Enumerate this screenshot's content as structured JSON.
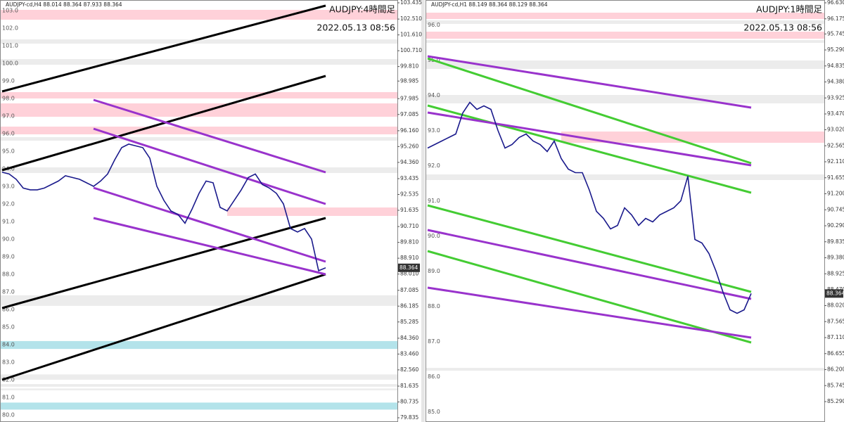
{
  "chart_data": [
    {
      "type": "line",
      "header": "AUDJPY-cd,H4  88.014 88.364 87.933 88.364",
      "title": "AUDJPY:4時間足",
      "subtitle": "2022.05.13 08:56",
      "color": "#1a1a8c",
      "values": [
        93.8,
        93.7,
        93.4,
        92.9,
        92.8,
        92.8,
        92.9,
        93.1,
        93.3,
        93.6,
        93.5,
        93.4,
        93.2,
        93.0,
        93.3,
        93.7,
        94.5,
        95.2,
        95.4,
        95.3,
        95.2,
        94.6,
        93.0,
        92.2,
        91.6,
        91.4,
        90.9,
        91.7,
        92.6,
        93.3,
        93.2,
        91.8,
        91.6,
        92.2,
        92.8,
        93.5,
        93.7,
        93.1,
        92.9,
        92.6,
        92.0,
        90.6,
        90.4,
        90.6,
        90.0,
        88.2,
        88.364
      ],
      "last_price": 88.364,
      "ylim": [
        79.595,
        103.595
      ],
      "yticks": [
        103.435,
        {
          "value": 102.51,
          "label": "102.510"
        },
        {
          "value": 101.61,
          "label": "101.610"
        },
        {
          "value": 100.71,
          "label": "100.710"
        },
        {
          "value": 99.81,
          "label": "99.810"
        },
        98.985,
        97.985,
        97.085,
        {
          "value": 96.16,
          "label": "96.160"
        },
        {
          "value": 95.26,
          "label": "95.260"
        },
        {
          "value": 94.36,
          "label": "94.360"
        },
        93.435,
        92.535,
        91.635,
        {
          "value": 90.71,
          "label": "90.710"
        },
        {
          "value": 89.81,
          "label": "89.810"
        },
        {
          "value": 88.91,
          "label": "88.910"
        },
        {
          "value": 88.01,
          "label": "88.010"
        },
        87.085,
        86.185,
        85.285,
        {
          "value": 84.36,
          "label": "84.360"
        },
        {
          "value": 83.46,
          "label": "83.460"
        },
        {
          "value": 82.56,
          "label": "82.560"
        },
        81.635,
        80.735,
        79.835
      ],
      "levels": [
        {
          "value": 103,
          "label": "103.0"
        },
        {
          "value": 102,
          "label": "102.0"
        },
        {
          "value": 101,
          "label": "101.0"
        },
        {
          "value": 100,
          "label": "100.0"
        },
        {
          "value": 99,
          "label": "99.0"
        },
        {
          "value": 98,
          "label": "98.0"
        },
        {
          "value": 97,
          "label": "97.0"
        },
        {
          "value": 96,
          "label": "96.0"
        },
        {
          "value": 95,
          "label": "95.0"
        },
        {
          "value": 94,
          "label": "94.0"
        },
        {
          "value": 93,
          "label": "93.0"
        },
        {
          "value": 92,
          "label": "92.0"
        },
        {
          "value": 91,
          "label": "91.0"
        },
        {
          "value": 90,
          "label": "90.0"
        },
        {
          "value": 89,
          "label": "89.0"
        },
        {
          "value": 88,
          "label": "88.0"
        },
        {
          "value": 87,
          "label": "87.0"
        },
        {
          "value": 86,
          "label": "86.0"
        },
        {
          "value": 85,
          "label": "85.0"
        },
        {
          "value": 84,
          "label": "84.0"
        },
        {
          "value": 83,
          "label": "83.0"
        },
        {
          "value": 82,
          "label": "82.0"
        },
        {
          "value": 81,
          "label": "81.0"
        },
        {
          "value": 80,
          "label": "80.0"
        }
      ],
      "zones": [
        {
          "from": 102.475,
          "to": 103.035,
          "color": "#ffd1d9"
        },
        {
          "from": 101.115,
          "to": 101.355,
          "color": "#ececec"
        },
        {
          "from": 99.915,
          "to": 100.235,
          "color": "#ececec"
        },
        {
          "from": 97.995,
          "to": 98.355,
          "color": "#ffd1d9"
        },
        {
          "from": 96.955,
          "to": 97.715,
          "color": "#ffd1d9"
        },
        {
          "from": 95.955,
          "to": 96.395,
          "color": "#ffd1d9"
        },
        {
          "from": 95.595,
          "to": 95.795,
          "color": "#ececec"
        },
        {
          "from": 93.755,
          "to": 94.075,
          "color": "#ececec"
        },
        {
          "from": 91.315,
          "to": 91.795,
          "color": "#ffd1d9",
          "start": 32
        },
        {
          "from": 86.2,
          "to": 86.8,
          "color": "#ececec"
        },
        {
          "from": 83.75,
          "to": 84.2,
          "color": "#b3e3ea"
        },
        {
          "from": 82.0,
          "to": 82.3,
          "color": "#ececec"
        },
        {
          "from": 81.6,
          "to": 81.75,
          "color": "#ececec"
        },
        {
          "from": 81.4,
          "to": 81.5,
          "color": "#ececec"
        },
        {
          "from": 80.3,
          "to": 80.7,
          "color": "#b3e3ea"
        }
      ],
      "trendlines": [
        {
          "x": [
            0,
            46
          ],
          "y": [
            98.395,
            103.275
          ],
          "color": "#000000"
        },
        {
          "x": [
            0,
            46
          ],
          "y": [
            93.915,
            99.275
          ],
          "color": "#000000"
        },
        {
          "x": [
            0,
            46
          ],
          "y": [
            86.075,
            91.195
          ],
          "color": "#000000"
        },
        {
          "x": [
            0,
            46
          ],
          "y": [
            81.995,
            87.995
          ],
          "color": "#000000"
        },
        {
          "x": [
            13,
            46
          ],
          "y": [
            97.915,
            93.795
          ],
          "color": "#9933cc"
        },
        {
          "x": [
            13,
            46
          ],
          "y": [
            96.275,
            91.995
          ],
          "color": "#9933cc"
        },
        {
          "x": [
            13,
            46
          ],
          "y": [
            92.915,
            88.715
          ],
          "color": "#9933cc"
        },
        {
          "x": [
            13,
            46
          ],
          "y": [
            91.195,
            87.995
          ],
          "color": "#9933cc"
        }
      ]
    },
    {
      "type": "line",
      "header": "AUDJPY-cd,H1  88.149 88.364 88.129 88.364",
      "title": "AUDJPY:1時間足",
      "subtitle": "2022.05.13 08:56",
      "color": "#1a1a8c",
      "values": [
        92.5,
        92.6,
        92.7,
        92.8,
        92.9,
        93.5,
        93.8,
        93.6,
        93.7,
        93.6,
        93.0,
        92.5,
        92.6,
        92.8,
        92.9,
        92.7,
        92.6,
        92.4,
        92.7,
        92.2,
        91.9,
        91.8,
        91.8,
        91.3,
        90.7,
        90.5,
        90.2,
        90.3,
        90.8,
        90.6,
        90.3,
        90.5,
        90.4,
        90.6,
        90.7,
        90.8,
        91.0,
        91.7,
        89.9,
        89.8,
        89.5,
        89.0,
        88.4,
        87.9,
        87.8,
        87.9,
        88.364
      ],
      "last_price": 88.364,
      "ylim": [
        84.71,
        96.71
      ],
      "yticks": [
        {
          "value": 96.63,
          "label": "96.630"
        },
        96.175,
        95.745,
        {
          "value": 95.29,
          "label": "95.290"
        },
        94.835,
        {
          "value": 94.38,
          "label": "94.380"
        },
        93.925,
        {
          "value": 93.47,
          "label": "93.470"
        },
        {
          "value": 93.02,
          "label": "93.020"
        },
        92.565,
        {
          "value": 92.11,
          "label": "92.110"
        },
        91.655,
        {
          "value": 91.2,
          "label": "91.200"
        },
        90.745,
        {
          "value": 90.29,
          "label": "90.290"
        },
        89.835,
        {
          "value": 89.38,
          "label": "89.380"
        },
        88.925,
        {
          "value": 88.47,
          "label": "88.470"
        },
        {
          "value": 88.02,
          "label": "88.020"
        },
        87.565,
        {
          "value": 87.11,
          "label": "87.110"
        },
        86.655,
        {
          "value": 86.2,
          "label": "86.200"
        },
        85.745,
        {
          "value": 85.29,
          "label": "85.290"
        }
      ],
      "levels": [
        {
          "value": 96,
          "label": "96.0"
        },
        {
          "value": 95,
          "label": "95.0"
        },
        {
          "value": 94,
          "label": "94.0"
        },
        {
          "value": 93,
          "label": "93.0"
        },
        {
          "value": 92,
          "label": "92.0"
        },
        {
          "value": 91,
          "label": "91.0"
        },
        {
          "value": 90,
          "label": "90.0"
        },
        {
          "value": 89,
          "label": "89.0"
        },
        {
          "value": 88,
          "label": "88.0"
        },
        {
          "value": 87,
          "label": "87.0"
        },
        {
          "value": 86,
          "label": "86.0"
        },
        {
          "value": 85,
          "label": "85.0"
        }
      ],
      "zones": [
        {
          "from": 96.17,
          "to": 96.35,
          "color": "#ffd1d9"
        },
        {
          "from": 96.03,
          "to": 96.13,
          "color": "#ececec"
        },
        {
          "from": 95.61,
          "to": 95.81,
          "color": "#ffd1d9"
        },
        {
          "from": 95.49,
          "to": 95.57,
          "color": "#ececec"
        },
        {
          "from": 94.75,
          "to": 94.99,
          "color": "#ececec"
        },
        {
          "from": 93.77,
          "to": 94.01,
          "color": "#ececec"
        },
        {
          "from": 92.65,
          "to": 92.97,
          "color": "#ffd1d9",
          "start": 19
        },
        {
          "from": 91.59,
          "to": 91.75,
          "color": "#ececec"
        },
        {
          "from": 86.17,
          "to": 86.25,
          "color": "#ececec"
        }
      ],
      "trendlines": [
        {
          "x": [
            0,
            46
          ],
          "y": [
            95.05,
            92.07
          ],
          "color": "#44cc33"
        },
        {
          "x": [
            0,
            46
          ],
          "y": [
            93.71,
            91.23
          ],
          "color": "#44cc33"
        },
        {
          "x": [
            0,
            46
          ],
          "y": [
            90.87,
            88.41
          ],
          "color": "#44cc33"
        },
        {
          "x": [
            0,
            46
          ],
          "y": [
            89.57,
            86.97
          ],
          "color": "#44cc33"
        },
        {
          "x": [
            0,
            46
          ],
          "y": [
            95.11,
            93.65
          ],
          "color": "#9933cc"
        },
        {
          "x": [
            0,
            46
          ],
          "y": [
            93.51,
            92.01
          ],
          "color": "#9933cc"
        },
        {
          "x": [
            0,
            46
          ],
          "y": [
            90.17,
            88.21
          ],
          "color": "#9933cc"
        },
        {
          "x": [
            0,
            46
          ],
          "y": [
            88.53,
            87.11
          ],
          "color": "#9933cc"
        }
      ]
    }
  ]
}
